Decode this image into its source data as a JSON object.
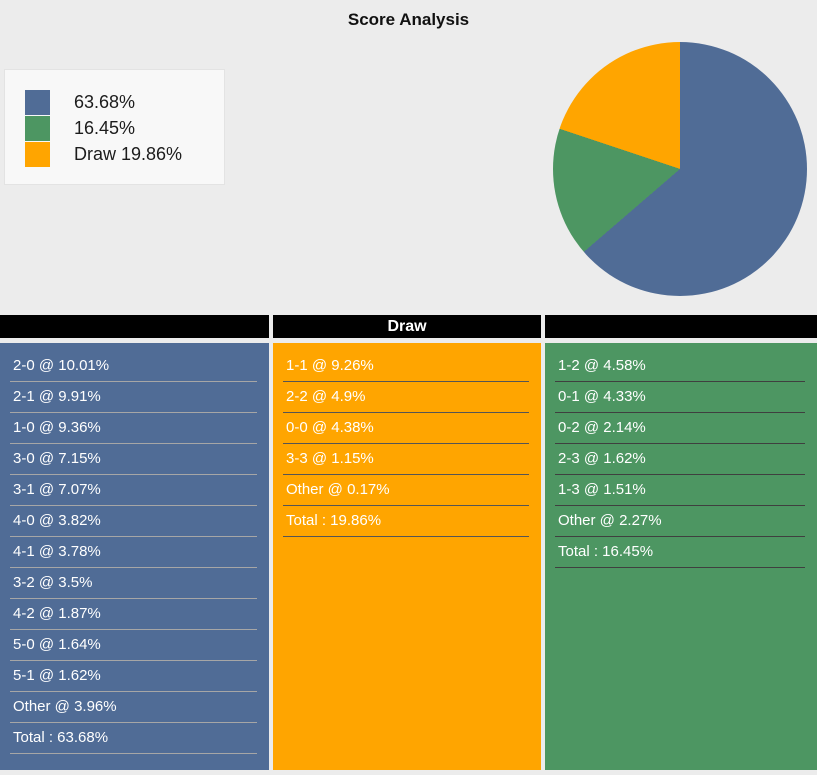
{
  "title": "Score Analysis",
  "colors": {
    "pie_blue": "#506C96",
    "pie_green": "#4D9662",
    "pie_orange": "#FFA500",
    "header_bg": "#000000",
    "page_bg": "#ECECEC",
    "legend_bg": "#F8F8F8"
  },
  "legend": {
    "items": [
      {
        "label": "63.68%",
        "color": "#506C96"
      },
      {
        "label": "16.45%",
        "color": "#4D9662"
      },
      {
        "label": "Draw 19.86%",
        "color": "#FFA500"
      }
    ]
  },
  "chart_data": {
    "type": "pie",
    "title": "Score Analysis",
    "start_angle_deg": 0,
    "direction": "clockwise",
    "legend_position": "upper-left",
    "slices": [
      {
        "label": "",
        "value": 63.68,
        "color": "#506C96"
      },
      {
        "label": "",
        "value": 16.45,
        "color": "#4D9662"
      },
      {
        "label": "Draw",
        "value": 19.86,
        "color": "#FFA500"
      }
    ],
    "tables": [
      {
        "header": "",
        "bg": "#506C96",
        "divider": "#A6A6A6",
        "rows": [
          "2-0 @ 10.01%",
          "2-1 @ 9.91%",
          "1-0 @ 9.36%",
          "3-0 @ 7.15%",
          "3-1 @ 7.07%",
          "4-0 @ 3.82%",
          "4-1 @ 3.78%",
          "3-2 @ 3.5%",
          "4-2 @ 1.87%",
          "5-0 @ 1.64%",
          "5-1 @ 1.62%",
          "Other @ 3.96%",
          "Total : 63.68%"
        ]
      },
      {
        "header": "Draw",
        "bg": "#FFA500",
        "divider": "#555555",
        "rows": [
          "1-1 @ 9.26%",
          "2-2 @ 4.9%",
          "0-0 @ 4.38%",
          "3-3 @ 1.15%",
          "Other @ 0.17%",
          "Total : 19.86%"
        ]
      },
      {
        "header": "",
        "bg": "#4D9662",
        "divider": "#3F3F3F",
        "rows": [
          "1-2 @ 4.58%",
          "0-1 @ 4.33%",
          "0-2 @ 2.14%",
          "2-3 @ 1.62%",
          "1-3 @ 1.51%",
          "Other @ 2.27%",
          "Total : 16.45%"
        ]
      }
    ]
  }
}
